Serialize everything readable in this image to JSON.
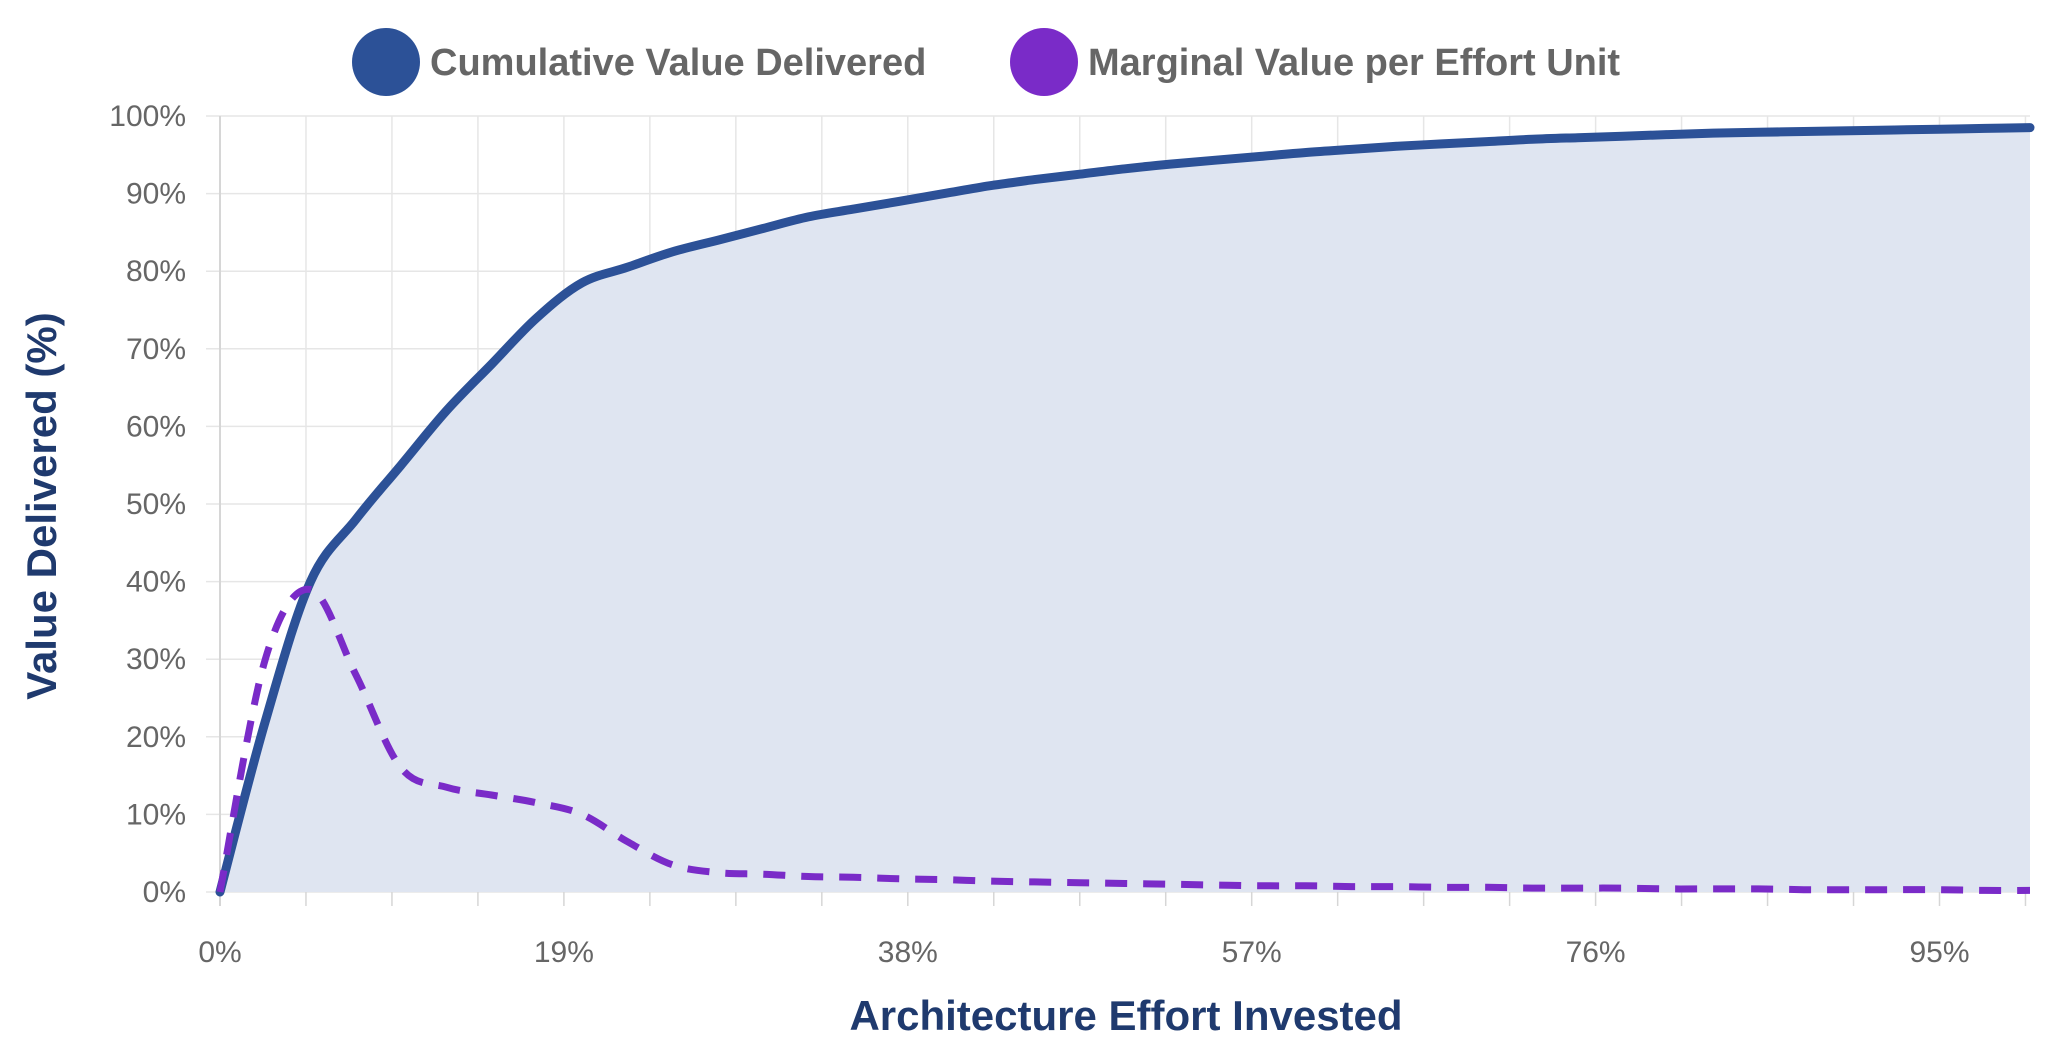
{
  "chart_data": {
    "type": "area",
    "title": "",
    "xlabel": "Architecture Effort Invested",
    "ylabel": "Value Delivered (%)",
    "xlim": [
      0,
      100
    ],
    "ylim": [
      0,
      100
    ],
    "grid": true,
    "legend_position": "top-center",
    "x_tick_labels": [
      "0%",
      "19%",
      "38%",
      "57%",
      "76%",
      "95%"
    ],
    "x_tick_values": [
      0,
      19,
      38,
      57,
      76,
      95
    ],
    "y_tick_labels": [
      "0%",
      "10%",
      "20%",
      "30%",
      "40%",
      "50%",
      "60%",
      "70%",
      "80%",
      "90%",
      "100%"
    ],
    "y_tick_values": [
      0,
      10,
      20,
      30,
      40,
      50,
      60,
      70,
      80,
      90,
      100
    ],
    "x": [
      0,
      2.5,
      5,
      7.5,
      10,
      12.5,
      15,
      17.5,
      20,
      22.5,
      25,
      27.5,
      30,
      32.5,
      35,
      37.5,
      40,
      42.5,
      45,
      47.5,
      50,
      52.5,
      55,
      57.5,
      60,
      62.5,
      65,
      67.5,
      70,
      72.5,
      75,
      77.5,
      80,
      82.5,
      85,
      87.5,
      90,
      92.5,
      95,
      97.5,
      100
    ],
    "series": [
      {
        "name": "Cumulative Value Delivered",
        "color": "#2c5197",
        "fill": "#dfe5f1",
        "style": "solid",
        "values": [
          0,
          22,
          40,
          48,
          55,
          62,
          68,
          74,
          78.5,
          80.5,
          82.5,
          84,
          85.5,
          87,
          88,
          89,
          90,
          91,
          91.8,
          92.5,
          93.2,
          93.8,
          94.3,
          94.8,
          95.3,
          95.7,
          96.1,
          96.4,
          96.7,
          97,
          97.2,
          97.4,
          97.6,
          97.8,
          97.9,
          98,
          98.1,
          98.2,
          98.3,
          98.4,
          98.5
        ]
      },
      {
        "name": "Marginal Value per Effort Unit",
        "color": "#7a2bc8",
        "style": "dashed",
        "values": [
          0,
          30,
          39,
          28,
          16,
          13.5,
          12.5,
          11.5,
          10,
          6.5,
          3.5,
          2.5,
          2.3,
          2,
          1.9,
          1.7,
          1.6,
          1.4,
          1.3,
          1.2,
          1.1,
          1,
          0.9,
          0.8,
          0.8,
          0.7,
          0.7,
          0.6,
          0.6,
          0.5,
          0.5,
          0.5,
          0.4,
          0.4,
          0.4,
          0.3,
          0.3,
          0.3,
          0.3,
          0.2,
          0.2
        ]
      }
    ]
  }
}
